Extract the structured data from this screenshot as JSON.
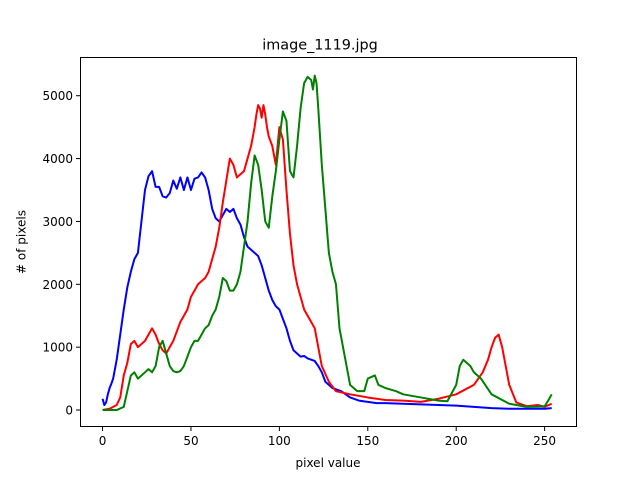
{
  "chart_data": {
    "type": "line",
    "title": "image_1119.jpg",
    "xlabel": "pixel value",
    "ylabel": "# of pixels",
    "xlim": [
      -12.75,
      267.75
    ],
    "ylim": [
      -270,
      5600
    ],
    "xticks": [
      0,
      50,
      100,
      150,
      200,
      250
    ],
    "yticks": [
      0,
      1000,
      2000,
      3000,
      4000,
      5000
    ],
    "grid": false,
    "series": [
      {
        "color": "#0000ff",
        "x": [
          0,
          1,
          2,
          3,
          4,
          5,
          6,
          8,
          10,
          12,
          14,
          16,
          18,
          20,
          22,
          24,
          26,
          28,
          30,
          32,
          34,
          36,
          38,
          40,
          42,
          44,
          46,
          48,
          50,
          52,
          54,
          56,
          58,
          60,
          62,
          64,
          66,
          68,
          70,
          72,
          74,
          76,
          78,
          80,
          82,
          84,
          86,
          88,
          90,
          92,
          94,
          96,
          98,
          100,
          102,
          104,
          106,
          108,
          110,
          112,
          114,
          116,
          118,
          120,
          122,
          124,
          126,
          128,
          130,
          135,
          140,
          145,
          150,
          155,
          160,
          170,
          180,
          190,
          200,
          210,
          220,
          230,
          240,
          250,
          254
        ],
        "values": [
          180,
          80,
          120,
          250,
          350,
          420,
          500,
          800,
          1200,
          1600,
          1950,
          2200,
          2400,
          2500,
          3000,
          3500,
          3720,
          3800,
          3550,
          3550,
          3400,
          3380,
          3450,
          3650,
          3520,
          3700,
          3500,
          3700,
          3500,
          3680,
          3700,
          3780,
          3700,
          3500,
          3200,
          3050,
          3000,
          3100,
          3200,
          3150,
          3200,
          3050,
          2950,
          2750,
          2600,
          2550,
          2500,
          2450,
          2300,
          2100,
          1900,
          1750,
          1650,
          1600,
          1450,
          1300,
          1100,
          950,
          900,
          850,
          860,
          820,
          800,
          780,
          700,
          600,
          450,
          400,
          350,
          300,
          200,
          150,
          130,
          110,
          110,
          100,
          90,
          80,
          70,
          50,
          30,
          20,
          20,
          20,
          30
        ]
      },
      {
        "color": "#ff0000",
        "x": [
          0,
          4,
          8,
          10,
          12,
          14,
          16,
          18,
          20,
          22,
          24,
          26,
          28,
          30,
          32,
          34,
          36,
          38,
          40,
          42,
          44,
          46,
          48,
          50,
          52,
          54,
          56,
          58,
          60,
          62,
          64,
          66,
          68,
          70,
          72,
          74,
          76,
          78,
          80,
          82,
          84,
          86,
          87,
          88,
          89,
          90,
          91,
          92,
          93,
          94,
          96,
          98,
          100,
          102,
          104,
          106,
          108,
          110,
          112,
          114,
          116,
          118,
          120,
          124,
          128,
          132,
          140,
          150,
          160,
          170,
          180,
          190,
          200,
          210,
          215,
          218,
          220,
          222,
          224,
          226,
          228,
          230,
          234,
          240,
          246,
          250,
          254
        ],
        "values": [
          0,
          20,
          80,
          200,
          550,
          750,
          1050,
          1100,
          1000,
          1050,
          1100,
          1200,
          1300,
          1200,
          1050,
          950,
          900,
          1000,
          1100,
          1250,
          1400,
          1500,
          1600,
          1800,
          1900,
          2000,
          2050,
          2100,
          2200,
          2400,
          2600,
          2900,
          3300,
          3650,
          4000,
          3900,
          3700,
          3750,
          3800,
          4000,
          4200,
          4500,
          4700,
          4850,
          4800,
          4650,
          4850,
          4700,
          4500,
          4350,
          4200,
          3900,
          4500,
          4300,
          3500,
          2800,
          2300,
          2000,
          1800,
          1600,
          1500,
          1400,
          1300,
          700,
          450,
          300,
          250,
          200,
          160,
          150,
          130,
          180,
          250,
          400,
          600,
          800,
          1000,
          1150,
          1200,
          1000,
          700,
          400,
          120,
          60,
          80,
          50,
          100
        ]
      },
      {
        "color": "#008000",
        "x": [
          0,
          4,
          8,
          12,
          14,
          16,
          18,
          20,
          22,
          24,
          26,
          28,
          30,
          32,
          34,
          36,
          38,
          40,
          42,
          44,
          46,
          48,
          50,
          52,
          54,
          56,
          58,
          60,
          62,
          64,
          66,
          68,
          70,
          72,
          74,
          76,
          78,
          80,
          82,
          84,
          86,
          88,
          90,
          92,
          94,
          96,
          98,
          100,
          102,
          104,
          106,
          108,
          110,
          112,
          114,
          116,
          118,
          119,
          120,
          121,
          122,
          124,
          126,
          128,
          130,
          132,
          134,
          136,
          140,
          144,
          148,
          150,
          154,
          156,
          160,
          166,
          170,
          180,
          190,
          195,
          200,
          202,
          204,
          206,
          208,
          210,
          214,
          220,
          230,
          240,
          250,
          252,
          254
        ],
        "values": [
          0,
          0,
          0,
          50,
          300,
          550,
          600,
          500,
          550,
          600,
          650,
          600,
          700,
          1000,
          1100,
          900,
          700,
          620,
          600,
          620,
          700,
          850,
          1000,
          1100,
          1100,
          1200,
          1300,
          1350,
          1500,
          1600,
          1800,
          2100,
          2050,
          1900,
          1900,
          2000,
          2200,
          2600,
          3000,
          3600,
          4050,
          3900,
          3500,
          3000,
          2900,
          3400,
          3800,
          4300,
          4750,
          4600,
          3800,
          3700,
          4200,
          4800,
          5200,
          5300,
          5250,
          5100,
          5320,
          5200,
          4800,
          3900,
          3200,
          2500,
          2200,
          2000,
          1300,
          1000,
          400,
          300,
          300,
          500,
          550,
          400,
          350,
          300,
          250,
          200,
          150,
          140,
          400,
          700,
          800,
          750,
          700,
          600,
          500,
          250,
          100,
          50,
          60,
          150,
          250
        ]
      }
    ]
  }
}
